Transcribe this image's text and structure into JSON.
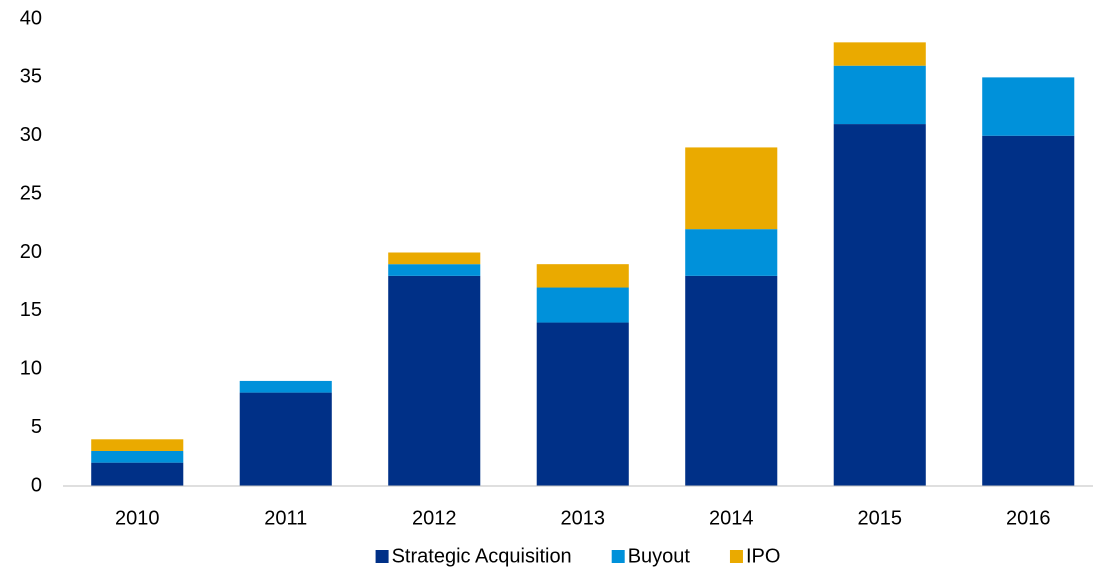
{
  "chart_data": {
    "type": "stacked_bar",
    "categories": [
      "2010",
      "2011",
      "2012",
      "2013",
      "2014",
      "2015",
      "2016"
    ],
    "series": [
      {
        "name": "Strategic Acquisition",
        "color": "#003087",
        "values": [
          2,
          8,
          18,
          14,
          18,
          31,
          30
        ]
      },
      {
        "name": "Buyout",
        "color": "#0091da",
        "values": [
          1,
          1,
          1,
          3,
          4,
          5,
          5
        ]
      },
      {
        "name": "IPO",
        "color": "#eaaa00",
        "values": [
          1,
          0,
          1,
          2,
          7,
          2,
          0
        ]
      }
    ],
    "ylim": [
      0,
      40
    ],
    "yticks": [
      0,
      5,
      10,
      15,
      20,
      25,
      30,
      35,
      40
    ],
    "grid": false,
    "legend": "bottom"
  }
}
